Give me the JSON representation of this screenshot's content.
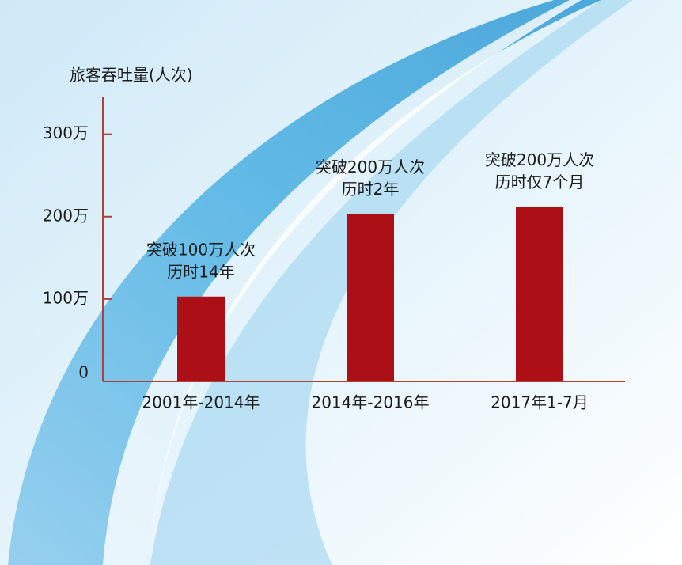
{
  "chart_data": {
    "type": "bar",
    "y_label": "旅客吞吐量(人次)",
    "categories": [
      "2001年-2014年",
      "2014年-2016年",
      "2017年1-7月"
    ],
    "values": [
      1030000,
      2030000,
      2120000
    ],
    "color": "#ad0f16",
    "annotations": [
      [
        "突破100万人次",
        "历时14年"
      ],
      [
        "突破200万人次",
        "历时2年"
      ],
      [
        "突破200万人次",
        "历时仅7个月"
      ]
    ],
    "ylim": [
      0,
      3400000
    ],
    "yticks": [
      0,
      {
        "value": 1000000,
        "label": "100万"
      },
      {
        "value": 2000000,
        "label": "200万"
      },
      {
        "value": 3000000,
        "label": "300万"
      }
    ]
  }
}
